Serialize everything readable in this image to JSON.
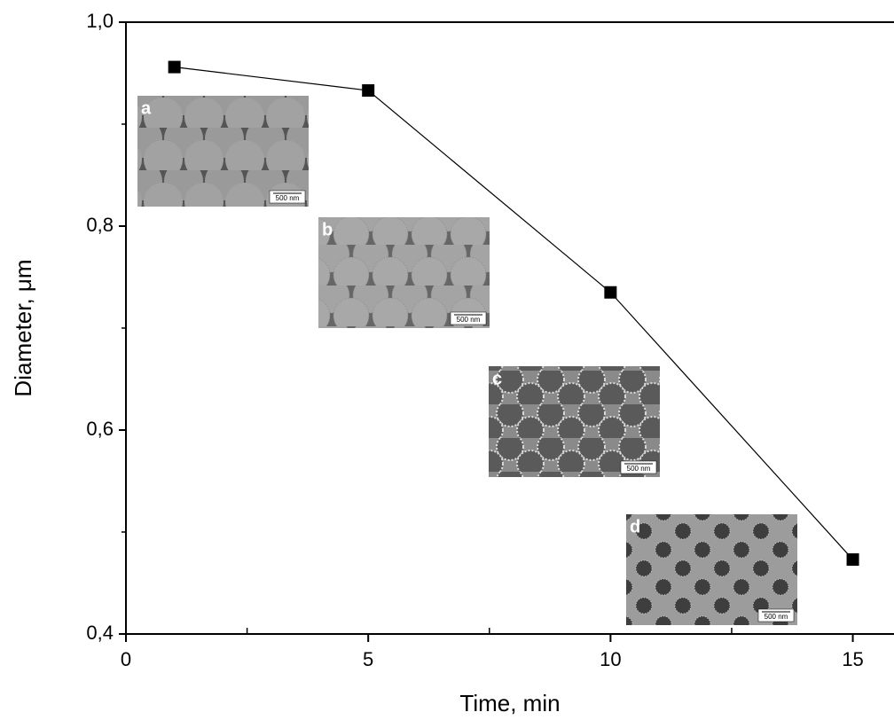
{
  "chart_data": {
    "type": "line",
    "xlabel": "Time, min",
    "ylabel": "Diameter, μm",
    "x": [
      1,
      5,
      10,
      15
    ],
    "series": [
      {
        "color": "#000000",
        "marker": "square",
        "values": [
          0.956,
          0.933,
          0.735,
          0.473
        ]
      }
    ],
    "xlim": [
      0,
      15.85
    ],
    "ylim": [
      0.4,
      1.0
    ],
    "xticks": [
      0,
      5,
      10,
      15
    ],
    "xminorticks": [
      2.5,
      7.5,
      12.5
    ],
    "yticks": [
      {
        "value": 0.4,
        "label": "0,4"
      },
      {
        "value": 0.6,
        "label": "0,6"
      },
      {
        "value": 0.8,
        "label": "0,8"
      },
      {
        "value": 1.0,
        "label": "1,0"
      }
    ],
    "yminorticks": [
      0.5,
      0.7,
      0.9
    ],
    "insets": [
      {
        "label": "a",
        "scale": "500 nm"
      },
      {
        "label": "b",
        "scale": "500 nm"
      },
      {
        "label": "c",
        "scale": "500 nm"
      },
      {
        "label": "d",
        "scale": "500 nm"
      }
    ]
  }
}
